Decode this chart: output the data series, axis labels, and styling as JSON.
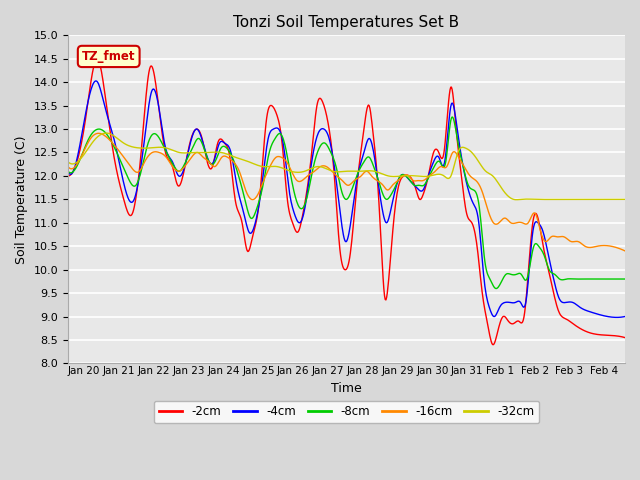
{
  "title": "Tonzi Soil Temperatures Set B",
  "xlabel": "Time",
  "ylabel": "Soil Temperature (C)",
  "ylim": [
    8.0,
    15.0
  ],
  "yticks": [
    8.0,
    8.5,
    9.0,
    9.5,
    10.0,
    10.5,
    11.0,
    11.5,
    12.0,
    12.5,
    13.0,
    13.5,
    14.0,
    14.5,
    15.0
  ],
  "series_colors": [
    "#ff0000",
    "#0000ff",
    "#00cc00",
    "#ff8800",
    "#cccc00"
  ],
  "series_labels": [
    "-2cm",
    "-4cm",
    "-8cm",
    "-16cm",
    "-32cm"
  ],
  "legend_label": "TZ_fmet",
  "legend_box_color": "#ffffcc",
  "legend_box_edge": "#cc0000",
  "fig_bg_color": "#d8d8d8",
  "plot_bg_color": "#e8e8e8",
  "grid_color": "#ffffff",
  "xtick_labels": [
    "Jan 20",
    "Jan 21",
    "Jan 22",
    "Jan 23",
    "Jan 24",
    "Jan 25",
    "Jan 26",
    "Jan 27",
    "Jan 28",
    "Jan 29",
    "Jan 30",
    "Jan 31",
    "Feb 1",
    "Feb 2",
    "Feb 3",
    "Feb 4"
  ]
}
